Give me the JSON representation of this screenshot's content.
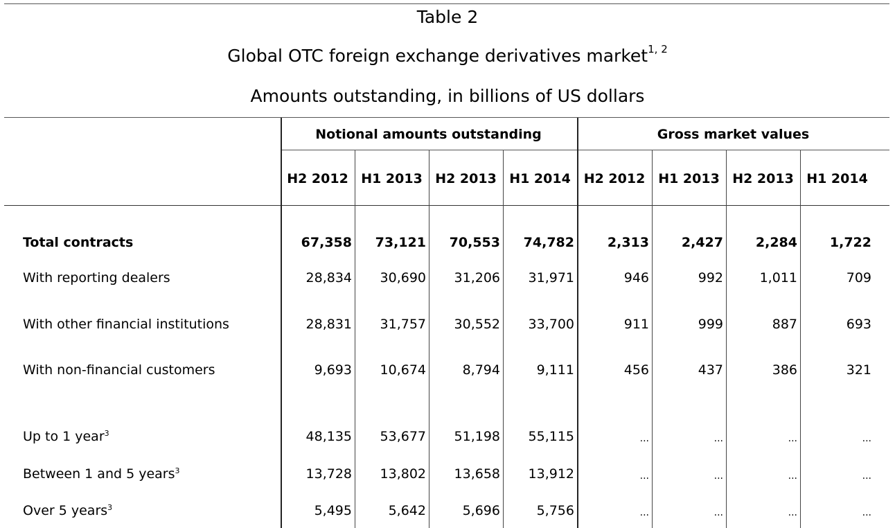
{
  "title": {
    "table_no": "Table 2",
    "main": "Global OTC foreign exchange derivatives market",
    "main_sup": "1, 2",
    "subtitle": "Amounts outstanding, in billions of US dollars"
  },
  "groups": {
    "notional": "Notional amounts outstanding",
    "gross": "Gross market values"
  },
  "columns": [
    "H2 2012",
    "H1 2013",
    "H2 2013",
    "H1 2014",
    "H2 2012",
    "H1 2013",
    "H2 2013",
    "H1 2014"
  ],
  "rows": [
    {
      "label": "Total contracts",
      "sup": "",
      "bold": true,
      "values": [
        "67,358",
        "73,121",
        "70,553",
        "74,782",
        "2,313",
        "2,427",
        "2,284",
        "1,722"
      ]
    },
    {
      "label": "With reporting dealers",
      "sup": "",
      "bold": false,
      "values": [
        "28,834",
        "30,690",
        "31,206",
        "31,971",
        "946",
        "992",
        "1,011",
        "709"
      ]
    },
    {
      "label": "With other financial institutions",
      "sup": "",
      "bold": false,
      "values": [
        "28,831",
        "31,757",
        "30,552",
        "33,700",
        "911",
        "999",
        "887",
        "693"
      ]
    },
    {
      "label": "With non-financial customers",
      "sup": "",
      "bold": false,
      "values": [
        "9,693",
        "10,674",
        "8,794",
        "9,111",
        "456",
        "437",
        "386",
        "321"
      ]
    },
    {
      "label": "Up to 1 year",
      "sup": "3",
      "bold": false,
      "values": [
        "48,135",
        "53,677",
        "51,198",
        "55,115",
        "...",
        "...",
        "...",
        "..."
      ]
    },
    {
      "label": "Between 1 and 5 years",
      "sup": "3",
      "bold": false,
      "values": [
        "13,728",
        "13,802",
        "13,658",
        "13,912",
        "...",
        "...",
        "...",
        "..."
      ]
    },
    {
      "label": "Over 5 years",
      "sup": "3",
      "bold": false,
      "values": [
        "5,495",
        "5,642",
        "5,696",
        "5,756",
        "...",
        "...",
        "...",
        "..."
      ]
    }
  ]
}
